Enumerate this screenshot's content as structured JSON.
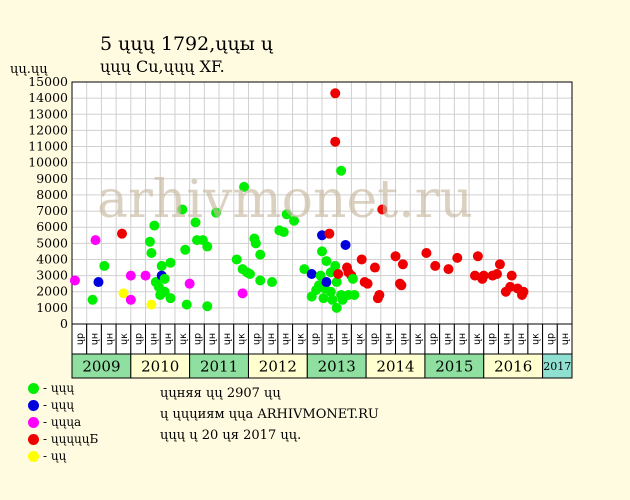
{
  "header": {
    "title_line1": "5 ųųų 1792,ųųы ų",
    "title_line2": "ųųų Cu,ųųų XF.",
    "y_unit": "ųų.ųų"
  },
  "watermark": "arhivmonet.ru",
  "notes": {
    "line1": "ųųняя ųų 2907 ųų",
    "line2": "ų ųųųиям ųųа ARHIVMONET.RU",
    "line3": "ųųų ų 20 ųя 2017 ųų."
  },
  "legend": [
    {
      "label": "- ųųų",
      "color": "#00ee00"
    },
    {
      "label": "- ųųų",
      "color": "#0000dd"
    },
    {
      "label": "- ųųųa",
      "color": "#ff00ff"
    },
    {
      "label": "- ųųųųųБ",
      "color": "#ee0000"
    },
    {
      "label": "- ųų",
      "color": "#ffff00"
    }
  ],
  "colors": {
    "green": "#00ee00",
    "blue": "#0000dd",
    "magenta": "#ff00ff",
    "red": "#ee0000",
    "yellow": "#ffff00",
    "year_band_a": "#8fe0a0",
    "year_band_b": "#ffffd0",
    "year_band_last": "#8fe0d0",
    "background": "#fffbe0"
  },
  "chart_data": {
    "type": "scatter",
    "ylim": [
      0,
      15000
    ],
    "yticks": [
      0,
      1000,
      2000,
      3000,
      4000,
      5000,
      6000,
      7000,
      8000,
      9000,
      10000,
      11000,
      12000,
      13000,
      14000,
      15000
    ],
    "grid": true,
    "months": [
      "ųр",
      "ųн",
      "ųн",
      "ųк",
      "ųр",
      "ųн",
      "ųн",
      "ųк",
      "ųр",
      "ųн",
      "ųн",
      "ųк",
      "ųр",
      "ųн",
      "ųн",
      "ųк",
      "ųр",
      "ųн",
      "ųн",
      "ųк",
      "ųр",
      "ųн",
      "ųн",
      "ųк",
      "ųр",
      "ųн",
      "ųн",
      "ųк",
      "ųр",
      "ųн",
      "ųн",
      "ųк",
      "ųр",
      "ųн"
    ],
    "years": [
      {
        "label": "2009",
        "months": 4
      },
      {
        "label": "2010",
        "months": 4
      },
      {
        "label": "2011",
        "months": 4
      },
      {
        "label": "2012",
        "months": 4
      },
      {
        "label": "2013",
        "months": 4
      },
      {
        "label": "2014",
        "months": 4
      },
      {
        "label": "2015",
        "months": 4
      },
      {
        "label": "2016",
        "months": 4
      },
      {
        "label": "2017",
        "months": 2
      }
    ],
    "points": [
      {
        "c": "magenta",
        "x": 0.2,
        "y": 2700
      },
      {
        "c": "green",
        "x": 1.4,
        "y": 1500
      },
      {
        "c": "magenta",
        "x": 1.6,
        "y": 5200
      },
      {
        "c": "blue",
        "x": 1.8,
        "y": 2600
      },
      {
        "c": "green",
        "x": 2.2,
        "y": 3600
      },
      {
        "c": "red",
        "x": 3.4,
        "y": 5600
      },
      {
        "c": "yellow",
        "x": 3.5,
        "y": 1900
      },
      {
        "c": "magenta",
        "x": 4.0,
        "y": 3000
      },
      {
        "c": "magenta",
        "x": 4.0,
        "y": 1500
      },
      {
        "c": "magenta",
        "x": 5.0,
        "y": 3000
      },
      {
        "c": "green",
        "x": 5.3,
        "y": 5100
      },
      {
        "c": "green",
        "x": 5.4,
        "y": 4400
      },
      {
        "c": "yellow",
        "x": 5.4,
        "y": 1200
      },
      {
        "c": "green",
        "x": 5.6,
        "y": 6100
      },
      {
        "c": "green",
        "x": 5.7,
        "y": 2600
      },
      {
        "c": "green",
        "x": 5.9,
        "y": 2300
      },
      {
        "c": "green",
        "x": 6.0,
        "y": 1800
      },
      {
        "c": "green",
        "x": 6.1,
        "y": 3600
      },
      {
        "c": "blue",
        "x": 6.1,
        "y": 3000
      },
      {
        "c": "green",
        "x": 6.3,
        "y": 2800
      },
      {
        "c": "green",
        "x": 6.3,
        "y": 2000
      },
      {
        "c": "green",
        "x": 6.7,
        "y": 3800
      },
      {
        "c": "green",
        "x": 6.7,
        "y": 1600
      },
      {
        "c": "green",
        "x": 7.5,
        "y": 7100
      },
      {
        "c": "green",
        "x": 7.7,
        "y": 4600
      },
      {
        "c": "green",
        "x": 7.8,
        "y": 1200
      },
      {
        "c": "magenta",
        "x": 8.0,
        "y": 2500
      },
      {
        "c": "green",
        "x": 8.4,
        "y": 6300
      },
      {
        "c": "green",
        "x": 8.5,
        "y": 5200
      },
      {
        "c": "green",
        "x": 8.9,
        "y": 5200
      },
      {
        "c": "green",
        "x": 9.2,
        "y": 4800
      },
      {
        "c": "green",
        "x": 9.2,
        "y": 1100
      },
      {
        "c": "green",
        "x": 9.8,
        "y": 6900
      },
      {
        "c": "green",
        "x": 11.2,
        "y": 4000
      },
      {
        "c": "magenta",
        "x": 11.6,
        "y": 1900
      },
      {
        "c": "green",
        "x": 11.7,
        "y": 8500
      },
      {
        "c": "green",
        "x": 11.6,
        "y": 3400
      },
      {
        "c": "green",
        "x": 11.9,
        "y": 3200
      },
      {
        "c": "green",
        "x": 12.1,
        "y": 3100
      },
      {
        "c": "green",
        "x": 12.4,
        "y": 5300
      },
      {
        "c": "green",
        "x": 12.5,
        "y": 5000
      },
      {
        "c": "green",
        "x": 12.8,
        "y": 4300
      },
      {
        "c": "green",
        "x": 12.8,
        "y": 2700
      },
      {
        "c": "green",
        "x": 13.6,
        "y": 2600
      },
      {
        "c": "green",
        "x": 14.1,
        "y": 5800
      },
      {
        "c": "green",
        "x": 14.4,
        "y": 5700
      },
      {
        "c": "green",
        "x": 14.6,
        "y": 6800
      },
      {
        "c": "green",
        "x": 15.1,
        "y": 6400
      },
      {
        "c": "green",
        "x": 15.8,
        "y": 3400
      },
      {
        "c": "green",
        "x": 16.3,
        "y": 1700
      },
      {
        "c": "blue",
        "x": 16.3,
        "y": 3100
      },
      {
        "c": "green",
        "x": 16.6,
        "y": 2100
      },
      {
        "c": "green",
        "x": 16.8,
        "y": 2400
      },
      {
        "c": "green",
        "x": 16.9,
        "y": 3000
      },
      {
        "c": "green",
        "x": 17.0,
        "y": 4500
      },
      {
        "c": "blue",
        "x": 17.0,
        "y": 5500
      },
      {
        "c": "green",
        "x": 17.1,
        "y": 1600
      },
      {
        "c": "green",
        "x": 17.2,
        "y": 2200
      },
      {
        "c": "green",
        "x": 17.3,
        "y": 3900
      },
      {
        "c": "blue",
        "x": 17.3,
        "y": 2600
      },
      {
        "c": "red",
        "x": 17.5,
        "y": 5600
      },
      {
        "c": "green",
        "x": 17.6,
        "y": 3200
      },
      {
        "c": "green",
        "x": 17.6,
        "y": 2000
      },
      {
        "c": "green",
        "x": 17.7,
        "y": 1500
      },
      {
        "c": "red",
        "x": 17.9,
        "y": 14300
      },
      {
        "c": "red",
        "x": 17.9,
        "y": 11300
      },
      {
        "c": "green",
        "x": 17.9,
        "y": 3600
      },
      {
        "c": "green",
        "x": 18.0,
        "y": 2600
      },
      {
        "c": "green",
        "x": 18.0,
        "y": 1000
      },
      {
        "c": "red",
        "x": 18.1,
        "y": 3100
      },
      {
        "c": "green",
        "x": 18.3,
        "y": 9500
      },
      {
        "c": "green",
        "x": 18.3,
        "y": 1800
      },
      {
        "c": "green",
        "x": 18.4,
        "y": 1500
      },
      {
        "c": "blue",
        "x": 18.6,
        "y": 4900
      },
      {
        "c": "red",
        "x": 18.7,
        "y": 3500
      },
      {
        "c": "red",
        "x": 18.8,
        "y": 3200
      },
      {
        "c": "green",
        "x": 18.8,
        "y": 1800
      },
      {
        "c": "red",
        "x": 19.0,
        "y": 3000
      },
      {
        "c": "green",
        "x": 19.1,
        "y": 2800
      },
      {
        "c": "green",
        "x": 19.2,
        "y": 1800
      },
      {
        "c": "red",
        "x": 19.7,
        "y": 4000
      },
      {
        "c": "red",
        "x": 19.9,
        "y": 2600
      },
      {
        "c": "red",
        "x": 20.1,
        "y": 2500
      },
      {
        "c": "red",
        "x": 20.6,
        "y": 3500
      },
      {
        "c": "red",
        "x": 20.8,
        "y": 1600
      },
      {
        "c": "red",
        "x": 20.9,
        "y": 1800
      },
      {
        "c": "red",
        "x": 21.1,
        "y": 7100
      },
      {
        "c": "red",
        "x": 22.0,
        "y": 4200
      },
      {
        "c": "red",
        "x": 22.3,
        "y": 2500
      },
      {
        "c": "red",
        "x": 22.4,
        "y": 2400
      },
      {
        "c": "red",
        "x": 22.5,
        "y": 3700
      },
      {
        "c": "red",
        "x": 24.1,
        "y": 4400
      },
      {
        "c": "red",
        "x": 24.7,
        "y": 3600
      },
      {
        "c": "red",
        "x": 25.6,
        "y": 3400
      },
      {
        "c": "red",
        "x": 26.2,
        "y": 4100
      },
      {
        "c": "red",
        "x": 27.4,
        "y": 3000
      },
      {
        "c": "red",
        "x": 27.6,
        "y": 4200
      },
      {
        "c": "red",
        "x": 27.9,
        "y": 2800
      },
      {
        "c": "red",
        "x": 28.0,
        "y": 3000
      },
      {
        "c": "red",
        "x": 28.6,
        "y": 3000
      },
      {
        "c": "red",
        "x": 28.9,
        "y": 3100
      },
      {
        "c": "red",
        "x": 29.1,
        "y": 3700
      },
      {
        "c": "red",
        "x": 29.5,
        "y": 2000
      },
      {
        "c": "red",
        "x": 29.8,
        "y": 2300
      },
      {
        "c": "red",
        "x": 29.9,
        "y": 3000
      },
      {
        "c": "red",
        "x": 30.3,
        "y": 2200
      },
      {
        "c": "red",
        "x": 30.6,
        "y": 1800
      },
      {
        "c": "red",
        "x": 30.7,
        "y": 2000
      }
    ]
  }
}
